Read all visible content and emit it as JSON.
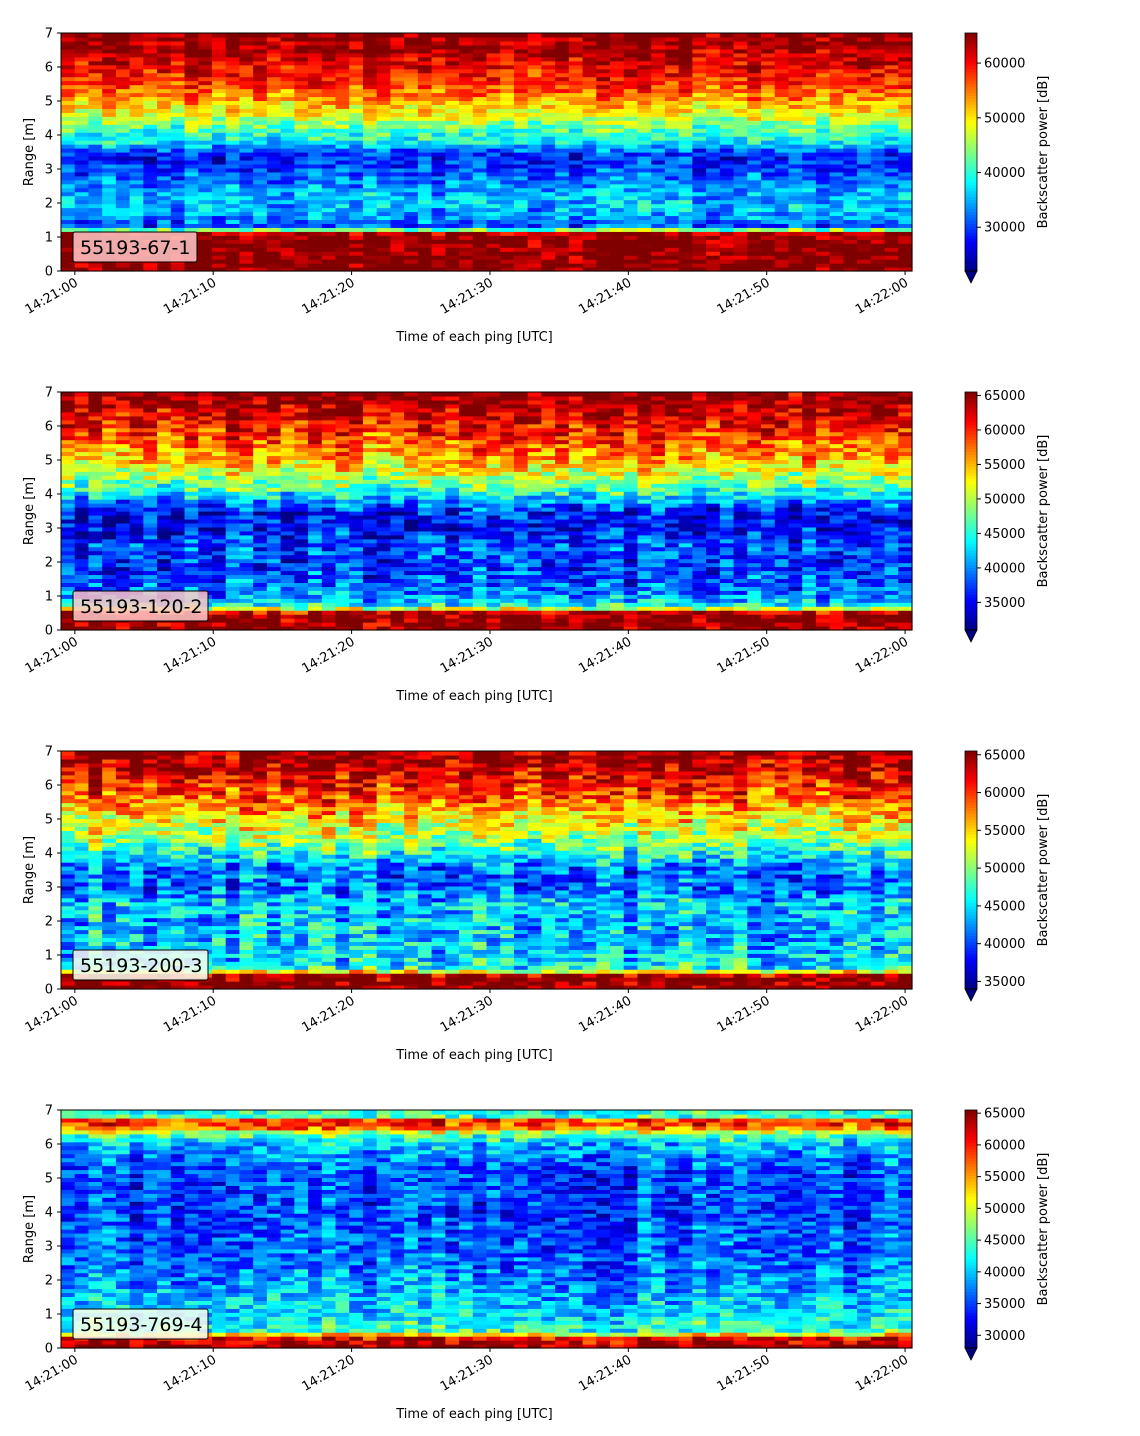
{
  "colors": {
    "axes": "#000000",
    "label_box_pink": "#ffc8c8",
    "label_box_pale": "#fafff0"
  },
  "chart_data": [
    {
      "type": "heatmap",
      "label": "55193-67-1",
      "label_box_color": "#ffc8c8",
      "xlabel": "Time of each ping [UTC]",
      "ylabel": "Range [m]",
      "colorbar_label": "Backscatter power [dB]",
      "xticks": [
        "14:21:00",
        "14:21:10",
        "14:21:20",
        "14:21:30",
        "14:21:40",
        "14:21:50",
        "14:22:00"
      ],
      "yticks": [
        0,
        1,
        2,
        3,
        4,
        5,
        6,
        7
      ],
      "cticks": [
        30000,
        40000,
        50000,
        60000
      ],
      "clim": [
        22000,
        65500
      ],
      "xlim_seconds": [
        -1,
        60.5
      ],
      "ylim": [
        0,
        7
      ],
      "colormap": "jet",
      "grid": false,
      "colorbar_extend": "min",
      "profile": [
        [
          0.0,
          65500
        ],
        [
          0.2,
          65500
        ],
        [
          1.1,
          65500
        ],
        [
          1.3,
          30000
        ],
        [
          1.6,
          34000
        ],
        [
          2.0,
          36000
        ],
        [
          2.5,
          34000
        ],
        [
          3.0,
          30000
        ],
        [
          3.4,
          28000
        ],
        [
          3.8,
          38000
        ],
        [
          4.2,
          42000
        ],
        [
          4.6,
          48000
        ],
        [
          5.2,
          55000
        ],
        [
          5.8,
          60000
        ],
        [
          6.4,
          63000
        ],
        [
          7.0,
          65500
        ]
      ]
    },
    {
      "type": "heatmap",
      "label": "55193-120-2",
      "label_box_color": "#ffc8c8",
      "xlabel": "Time of each ping [UTC]",
      "ylabel": "Range [m]",
      "colorbar_label": "Backscatter power [dB]",
      "xticks": [
        "14:21:00",
        "14:21:10",
        "14:21:20",
        "14:21:30",
        "14:21:40",
        "14:21:50",
        "14:22:00"
      ],
      "yticks": [
        0,
        1,
        2,
        3,
        4,
        5,
        6,
        7
      ],
      "cticks": [
        35000,
        40000,
        45000,
        50000,
        55000,
        60000,
        65000
      ],
      "clim": [
        31000,
        65500
      ],
      "xlim_seconds": [
        -1,
        60.5
      ],
      "ylim": [
        0,
        7
      ],
      "colormap": "jet",
      "grid": false,
      "colorbar_extend": "min",
      "profile": [
        [
          0.0,
          65500
        ],
        [
          0.5,
          65500
        ],
        [
          0.7,
          45000
        ],
        [
          1.0,
          40000
        ],
        [
          1.5,
          38000
        ],
        [
          2.0,
          37000
        ],
        [
          2.5,
          38000
        ],
        [
          3.0,
          35000
        ],
        [
          3.5,
          36000
        ],
        [
          4.0,
          44000
        ],
        [
          4.5,
          50000
        ],
        [
          5.0,
          55000
        ],
        [
          5.5,
          58000
        ],
        [
          6.0,
          61000
        ],
        [
          6.6,
          64000
        ],
        [
          7.0,
          65500
        ]
      ]
    },
    {
      "type": "heatmap",
      "label": "55193-200-3",
      "label_box_color": "#fafff0",
      "xlabel": "Time of each ping [UTC]",
      "ylabel": "Range [m]",
      "colorbar_label": "Backscatter power [dB]",
      "xticks": [
        "14:21:00",
        "14:21:10",
        "14:21:20",
        "14:21:30",
        "14:21:40",
        "14:21:50",
        "14:22:00"
      ],
      "yticks": [
        0,
        1,
        2,
        3,
        4,
        5,
        6,
        7
      ],
      "cticks": [
        35000,
        40000,
        45000,
        50000,
        55000,
        60000,
        65000
      ],
      "clim": [
        34000,
        65500
      ],
      "xlim_seconds": [
        -1,
        60.5
      ],
      "ylim": [
        0,
        7
      ],
      "colormap": "jet",
      "grid": false,
      "colorbar_extend": "min",
      "profile": [
        [
          0.0,
          65500
        ],
        [
          0.4,
          65500
        ],
        [
          0.6,
          46000
        ],
        [
          1.0,
          45000
        ],
        [
          1.5,
          44000
        ],
        [
          2.0,
          44000
        ],
        [
          2.5,
          45000
        ],
        [
          3.0,
          41000
        ],
        [
          3.5,
          41000
        ],
        [
          4.0,
          47000
        ],
        [
          4.5,
          51000
        ],
        [
          5.0,
          54000
        ],
        [
          5.5,
          58000
        ],
        [
          6.0,
          61000
        ],
        [
          6.6,
          64000
        ],
        [
          7.0,
          65500
        ]
      ]
    },
    {
      "type": "heatmap",
      "label": "55193-769-4",
      "label_box_color": "#fafff0",
      "xlabel": "Time of each ping [UTC]",
      "ylabel": "Range [m]",
      "colorbar_label": "Backscatter power [dB]",
      "xticks": [
        "14:21:00",
        "14:21:10",
        "14:21:20",
        "14:21:30",
        "14:21:40",
        "14:21:50",
        "14:22:00"
      ],
      "yticks": [
        0,
        1,
        2,
        3,
        4,
        5,
        6,
        7
      ],
      "cticks": [
        30000,
        35000,
        40000,
        45000,
        50000,
        55000,
        60000,
        65000
      ],
      "clim": [
        28000,
        65500
      ],
      "xlim_seconds": [
        -1,
        60.5
      ],
      "ylim": [
        0,
        7
      ],
      "colormap": "jet",
      "grid": false,
      "colorbar_extend": "min",
      "profile": [
        [
          0.0,
          65500
        ],
        [
          0.3,
          62000
        ],
        [
          0.5,
          44000
        ],
        [
          1.0,
          41000
        ],
        [
          1.5,
          40000
        ],
        [
          2.0,
          38000
        ],
        [
          2.5,
          37000
        ],
        [
          3.0,
          36000
        ],
        [
          3.5,
          36000
        ],
        [
          4.0,
          35000
        ],
        [
          4.5,
          35000
        ],
        [
          5.0,
          35000
        ],
        [
          5.5,
          37000
        ],
        [
          6.0,
          40000
        ],
        [
          6.3,
          46000
        ],
        [
          6.5,
          58000
        ],
        [
          6.7,
          60000
        ],
        [
          6.8,
          45000
        ],
        [
          7.0,
          42000
        ]
      ]
    }
  ]
}
